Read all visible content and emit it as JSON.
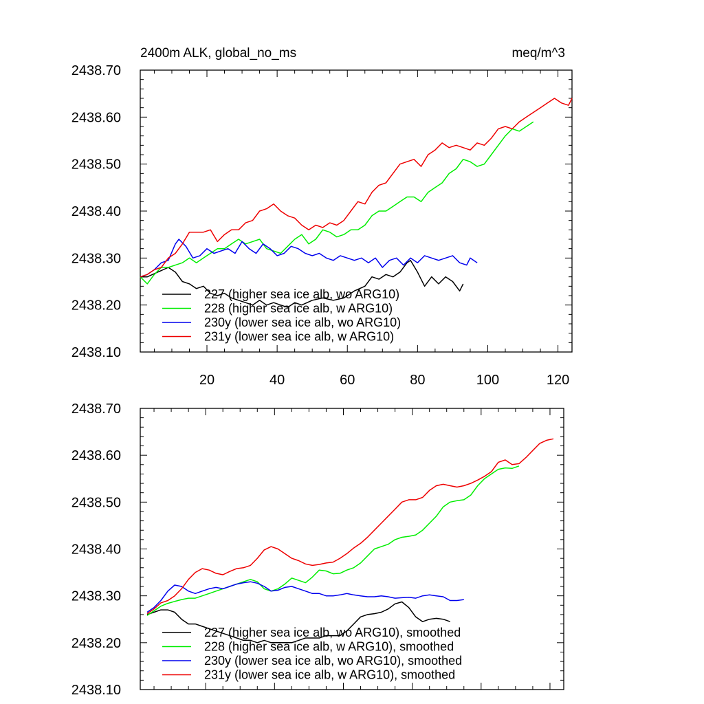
{
  "chart_data": [
    {
      "type": "line",
      "title": "2400m ALK, global_no_ms",
      "units": "meq/m^3",
      "xlim": [
        1,
        124
      ],
      "ylim": [
        2438.1,
        2438.7
      ],
      "xticks": [
        20,
        40,
        60,
        80,
        100,
        120
      ],
      "xtick_labels": [
        "20",
        "40",
        "60",
        "80",
        "100",
        "120"
      ],
      "yticks": [
        2438.1,
        2438.2,
        2438.3,
        2438.4,
        2438.5,
        2438.6,
        2438.7
      ],
      "ytick_labels": [
        "2438.10",
        "2438.20",
        "2438.30",
        "2438.40",
        "2438.50",
        "2438.60",
        "2438.70"
      ],
      "legend_position": "bottom-left",
      "series": [
        {
          "name": "227 (higher sea ice alb, wo ARG10)",
          "color": "#000000",
          "x": [
            1,
            3,
            6,
            9,
            11,
            13,
            15,
            17,
            19,
            21,
            23,
            25,
            27,
            29,
            31,
            33,
            35,
            37,
            39,
            41,
            43,
            45,
            47,
            50,
            53,
            56,
            59,
            62,
            65,
            67,
            69,
            71,
            73,
            75,
            77,
            78,
            80,
            82,
            84,
            86,
            88,
            90,
            92,
            93
          ],
          "y": [
            2438.26,
            2438.26,
            2438.27,
            2438.28,
            2438.27,
            2438.25,
            2438.245,
            2438.235,
            2438.24,
            2438.225,
            2438.22,
            2438.225,
            2438.215,
            2438.21,
            2438.205,
            2438.2,
            2438.21,
            2438.2,
            2438.205,
            2438.2,
            2438.195,
            2438.205,
            2438.2,
            2438.21,
            2438.215,
            2438.21,
            2438.215,
            2438.23,
            2438.24,
            2438.26,
            2438.255,
            2438.265,
            2438.26,
            2438.27,
            2438.29,
            2438.295,
            2438.27,
            2438.24,
            2438.26,
            2438.245,
            2438.26,
            2438.25,
            2438.23,
            2438.245
          ]
        },
        {
          "name": "228 (higher sea ice alb, w ARG10)",
          "color": "#00ee00",
          "x": [
            1,
            3,
            5,
            7,
            9,
            11,
            13,
            15,
            17,
            19,
            21,
            23,
            25,
            27,
            29,
            31,
            33,
            35,
            37,
            39,
            41,
            43,
            45,
            47,
            49,
            51,
            53,
            55,
            57,
            59,
            61,
            63,
            65,
            67,
            69,
            71,
            73,
            75,
            77,
            79,
            81,
            83,
            85,
            87,
            89,
            91,
            93,
            95,
            97,
            99,
            101,
            103,
            105,
            107,
            109,
            111,
            113
          ],
          "y": [
            2438.26,
            2438.245,
            2438.265,
            2438.28,
            2438.28,
            2438.285,
            2438.29,
            2438.3,
            2438.29,
            2438.3,
            2438.31,
            2438.32,
            2438.32,
            2438.33,
            2438.34,
            2438.33,
            2438.335,
            2438.34,
            2438.32,
            2438.315,
            2438.31,
            2438.325,
            2438.34,
            2438.35,
            2438.33,
            2438.34,
            2438.36,
            2438.355,
            2438.345,
            2438.35,
            2438.36,
            2438.36,
            2438.37,
            2438.39,
            2438.4,
            2438.4,
            2438.41,
            2438.42,
            2438.43,
            2438.43,
            2438.42,
            2438.44,
            2438.45,
            2438.46,
            2438.48,
            2438.49,
            2438.51,
            2438.505,
            2438.495,
            2438.5,
            2438.52,
            2438.54,
            2438.56,
            2438.575,
            2438.57,
            2438.58,
            2438.59
          ]
        },
        {
          "name": "230y (lower sea ice alb, wo ARG10)",
          "color": "#0000ee",
          "x": [
            1,
            3,
            5,
            7,
            9,
            11,
            12,
            14,
            16,
            18,
            20,
            22,
            24,
            26,
            28,
            30,
            32,
            34,
            36,
            38,
            40,
            42,
            44,
            46,
            48,
            50,
            52,
            54,
            56,
            58,
            60,
            62,
            64,
            66,
            68,
            70,
            72,
            74,
            76,
            78,
            80,
            82,
            84,
            86,
            88,
            90,
            92,
            94,
            95,
            97
          ],
          "y": [
            2438.26,
            2438.265,
            2438.275,
            2438.29,
            2438.295,
            2438.33,
            2438.34,
            2438.325,
            2438.3,
            2438.305,
            2438.32,
            2438.31,
            2438.315,
            2438.32,
            2438.31,
            2438.335,
            2438.32,
            2438.31,
            2438.33,
            2438.32,
            2438.305,
            2438.31,
            2438.325,
            2438.32,
            2438.31,
            2438.305,
            2438.31,
            2438.3,
            2438.295,
            2438.305,
            2438.3,
            2438.295,
            2438.3,
            2438.29,
            2438.3,
            2438.28,
            2438.295,
            2438.3,
            2438.285,
            2438.3,
            2438.29,
            2438.305,
            2438.3,
            2438.295,
            2438.3,
            2438.305,
            2438.29,
            2438.285,
            2438.3,
            2438.29
          ]
        },
        {
          "name": "231y (lower sea ice alb, w ARG10)",
          "color": "#ee0000",
          "x": [
            1,
            3,
            5,
            7,
            9,
            11,
            13,
            15,
            17,
            19,
            21,
            23,
            25,
            27,
            29,
            31,
            33,
            35,
            37,
            39,
            41,
            43,
            45,
            47,
            49,
            51,
            53,
            55,
            57,
            59,
            61,
            63,
            65,
            67,
            69,
            71,
            73,
            75,
            77,
            79,
            81,
            83,
            85,
            87,
            89,
            91,
            93,
            95,
            97,
            99,
            101,
            103,
            105,
            107,
            109,
            111,
            113,
            115,
            117,
            119,
            121,
            123,
            124
          ],
          "y": [
            2438.26,
            2438.265,
            2438.275,
            2438.28,
            2438.3,
            2438.31,
            2438.33,
            2438.355,
            2438.355,
            2438.355,
            2438.36,
            2438.335,
            2438.35,
            2438.36,
            2438.36,
            2438.375,
            2438.38,
            2438.4,
            2438.405,
            2438.415,
            2438.4,
            2438.39,
            2438.385,
            2438.37,
            2438.36,
            2438.37,
            2438.365,
            2438.375,
            2438.37,
            2438.38,
            2438.4,
            2438.42,
            2438.415,
            2438.44,
            2438.455,
            2438.46,
            2438.48,
            2438.5,
            2438.505,
            2438.51,
            2438.495,
            2438.52,
            2438.53,
            2438.545,
            2438.535,
            2438.54,
            2438.535,
            2438.53,
            2438.545,
            2438.54,
            2438.555,
            2438.575,
            2438.58,
            2438.575,
            2438.59,
            2438.6,
            2438.61,
            2438.62,
            2438.63,
            2438.64,
            2438.63,
            2438.625,
            2438.64
          ]
        }
      ]
    },
    {
      "type": "line",
      "title": "",
      "units": "",
      "xlim": [
        1,
        124
      ],
      "ylim": [
        2438.1,
        2438.7
      ],
      "xticks": [
        20,
        40,
        60,
        80,
        100,
        120
      ],
      "yticks": [
        2438.1,
        2438.2,
        2438.3,
        2438.4,
        2438.5,
        2438.6,
        2438.7
      ],
      "ytick_labels": [
        "2438.10",
        "2438.20",
        "2438.30",
        "2438.40",
        "2438.50",
        "2438.60",
        "2438.70"
      ],
      "legend_position": "bottom-left",
      "series": [
        {
          "name": "227 (higher sea ice alb, wo ARG10), smoothed",
          "color": "#000000",
          "x": [
            3,
            5,
            7,
            9,
            11,
            13,
            15,
            17,
            19,
            21,
            23,
            25,
            27,
            29,
            31,
            33,
            35,
            37,
            39,
            41,
            43,
            45,
            47,
            49,
            51,
            53,
            55,
            57,
            59,
            61,
            63,
            65,
            67,
            69,
            71,
            73,
            75,
            77,
            79,
            81,
            83,
            85,
            87,
            89,
            91
          ],
          "y": [
            2438.26,
            2438.265,
            2438.27,
            2438.27,
            2438.265,
            2438.25,
            2438.24,
            2438.24,
            2438.235,
            2438.23,
            2438.225,
            2438.22,
            2438.215,
            2438.21,
            2438.205,
            2438.205,
            2438.2,
            2438.205,
            2438.2,
            2438.2,
            2438.2,
            2438.2,
            2438.205,
            2438.21,
            2438.21,
            2438.21,
            2438.215,
            2438.215,
            2438.215,
            2438.225,
            2438.24,
            2438.255,
            2438.26,
            2438.262,
            2438.265,
            2438.272,
            2438.283,
            2438.287,
            2438.275,
            2438.255,
            2438.245,
            2438.25,
            2438.252,
            2438.25,
            2438.245
          ]
        },
        {
          "name": "228 (higher sea ice alb, w ARG10), smoothed",
          "color": "#00ee00",
          "x": [
            3,
            5,
            7,
            9,
            11,
            13,
            15,
            17,
            19,
            21,
            23,
            25,
            27,
            29,
            31,
            33,
            35,
            37,
            39,
            41,
            43,
            45,
            47,
            49,
            51,
            53,
            55,
            57,
            59,
            61,
            63,
            65,
            67,
            69,
            71,
            73,
            75,
            77,
            79,
            81,
            83,
            85,
            87,
            89,
            91,
            93,
            95,
            97,
            99,
            101,
            103,
            105,
            107,
            109,
            111
          ],
          "y": [
            2438.258,
            2438.268,
            2438.278,
            2438.284,
            2438.288,
            2438.292,
            2438.295,
            2438.295,
            2438.3,
            2438.305,
            2438.31,
            2438.315,
            2438.32,
            2438.325,
            2438.33,
            2438.335,
            2438.33,
            2438.315,
            2438.31,
            2438.315,
            2438.325,
            2438.338,
            2438.333,
            2438.328,
            2438.34,
            2438.355,
            2438.353,
            2438.347,
            2438.348,
            2438.355,
            2438.36,
            2438.37,
            2438.385,
            2438.4,
            2438.405,
            2438.41,
            2438.42,
            2438.425,
            2438.427,
            2438.43,
            2438.44,
            2438.455,
            2438.47,
            2438.49,
            2438.5,
            2438.503,
            2438.505,
            2438.515,
            2438.535,
            2438.55,
            2438.56,
            2438.57,
            2438.573,
            2438.572,
            2438.577
          ]
        },
        {
          "name": "230y (lower sea ice alb, wo ARG10), smoothed",
          "color": "#0000ee",
          "x": [
            3,
            5,
            7,
            9,
            11,
            13,
            15,
            17,
            19,
            21,
            23,
            25,
            27,
            29,
            31,
            33,
            35,
            37,
            39,
            41,
            43,
            45,
            47,
            49,
            51,
            53,
            55,
            57,
            59,
            61,
            63,
            65,
            67,
            69,
            71,
            73,
            75,
            77,
            79,
            81,
            83,
            85,
            87,
            89,
            91,
            93,
            95
          ],
          "y": [
            2438.265,
            2438.275,
            2438.29,
            2438.31,
            2438.323,
            2438.32,
            2438.31,
            2438.305,
            2438.31,
            2438.315,
            2438.318,
            2438.315,
            2438.32,
            2438.325,
            2438.328,
            2438.33,
            2438.327,
            2438.32,
            2438.31,
            2438.312,
            2438.318,
            2438.32,
            2438.315,
            2438.31,
            2438.305,
            2438.305,
            2438.3,
            2438.3,
            2438.302,
            2438.305,
            2438.302,
            2438.3,
            2438.298,
            2438.298,
            2438.3,
            2438.298,
            2438.295,
            2438.296,
            2438.297,
            2438.295,
            2438.3,
            2438.302,
            2438.3,
            2438.298,
            2438.29,
            2438.29,
            2438.292
          ]
        },
        {
          "name": "231y (lower sea ice alb, w ARG10), smoothed",
          "color": "#ee0000",
          "x": [
            3,
            5,
            7,
            9,
            11,
            13,
            15,
            17,
            19,
            21,
            23,
            25,
            27,
            29,
            31,
            33,
            35,
            37,
            39,
            41,
            43,
            45,
            47,
            49,
            51,
            53,
            55,
            57,
            59,
            61,
            63,
            65,
            67,
            69,
            71,
            73,
            75,
            77,
            79,
            81,
            83,
            85,
            87,
            89,
            91,
            93,
            95,
            97,
            99,
            101,
            103,
            105,
            107,
            109,
            111,
            113,
            115,
            117,
            119,
            121
          ],
          "y": [
            2438.262,
            2438.272,
            2438.285,
            2438.29,
            2438.3,
            2438.315,
            2438.335,
            2438.35,
            2438.358,
            2438.355,
            2438.348,
            2438.345,
            2438.352,
            2438.358,
            2438.36,
            2438.365,
            2438.38,
            2438.398,
            2438.405,
            2438.4,
            2438.39,
            2438.38,
            2438.375,
            2438.368,
            2438.365,
            2438.367,
            2438.37,
            2438.372,
            2438.38,
            2438.39,
            2438.402,
            2438.412,
            2438.425,
            2438.44,
            2438.455,
            2438.47,
            2438.485,
            2438.5,
            2438.505,
            2438.505,
            2438.51,
            2438.525,
            2438.535,
            2438.538,
            2438.535,
            2438.532,
            2438.535,
            2438.54,
            2438.547,
            2438.555,
            2438.565,
            2438.585,
            2438.59,
            2438.58,
            2438.582,
            2438.595,
            2438.61,
            2438.625,
            2438.632,
            2438.635
          ]
        }
      ]
    }
  ]
}
